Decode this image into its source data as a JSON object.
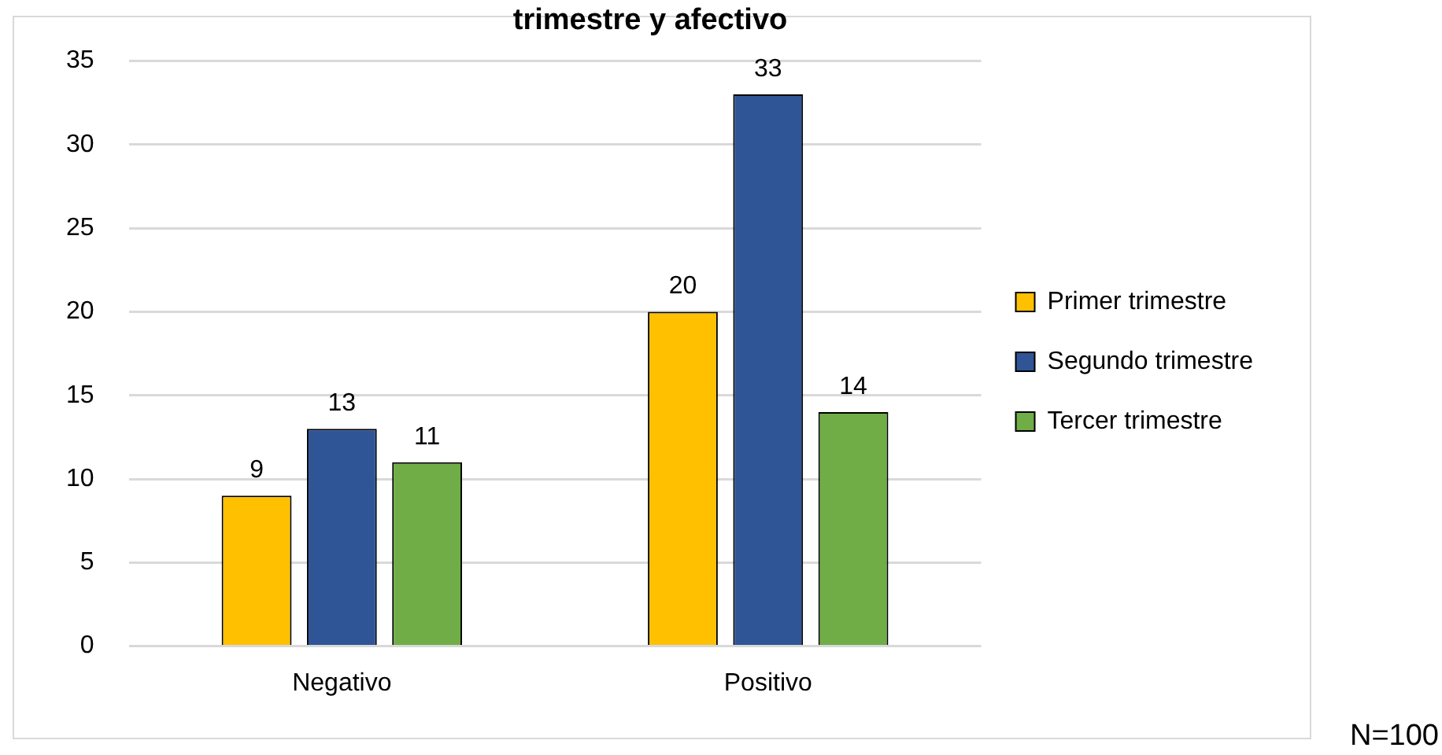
{
  "chart_data": {
    "type": "bar",
    "title": "trimestre y afectivo",
    "categories": [
      "Negativo",
      "Positivo"
    ],
    "series": [
      {
        "name": "Primer trimestre",
        "color": "#ffc000",
        "values": [
          9,
          20
        ]
      },
      {
        "name": "Segundo trimestre",
        "color": "#2f5597",
        "values": [
          13,
          33
        ]
      },
      {
        "name": "Tercer trimestre",
        "color": "#70ad47",
        "values": [
          11,
          14
        ]
      }
    ],
    "ylim": [
      0,
      35
    ],
    "yticks": [
      0,
      5,
      10,
      15,
      20,
      25,
      30,
      35
    ],
    "grid": "y",
    "legend": "right",
    "data_labels": true,
    "annotations": [
      "N=100"
    ]
  }
}
